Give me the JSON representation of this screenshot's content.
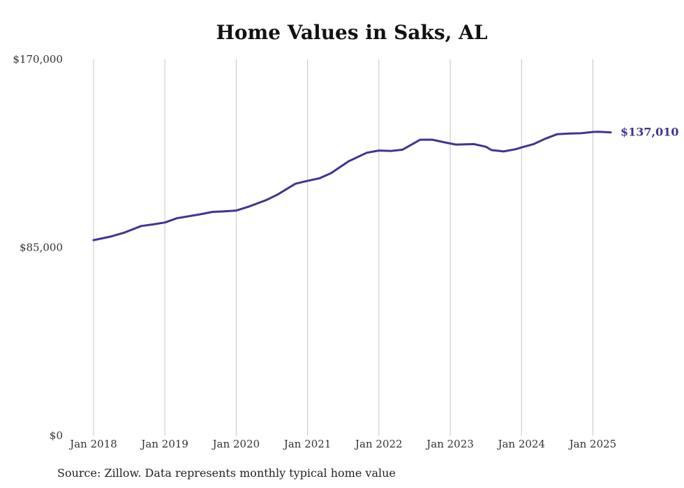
{
  "chart_data": {
    "type": "line",
    "title": "Home Values in Saks, AL",
    "xlabel": "",
    "ylabel": "",
    "ylim": [
      0,
      170000
    ],
    "y_ticks": [
      {
        "value": 0,
        "label": "$0"
      },
      {
        "value": 85000,
        "label": "$85,000"
      },
      {
        "value": 170000,
        "label": "$170,000"
      }
    ],
    "x_ticks": [
      {
        "value": 2018,
        "label": "Jan 2018"
      },
      {
        "value": 2019,
        "label": "Jan 2019"
      },
      {
        "value": 2020,
        "label": "Jan 2020"
      },
      {
        "value": 2021,
        "label": "Jan 2021"
      },
      {
        "value": 2022,
        "label": "Jan 2022"
      },
      {
        "value": 2023,
        "label": "Jan 2023"
      },
      {
        "value": 2024,
        "label": "Jan 2024"
      },
      {
        "value": 2025,
        "label": "Jan 2025"
      }
    ],
    "xlim": [
      2018,
      2025.25
    ],
    "grid": "vertical",
    "line_color": "#3f3591",
    "series": [
      {
        "points": [
          [
            2018.0,
            88300
          ],
          [
            2018.25,
            90000
          ],
          [
            2018.42,
            91600
          ],
          [
            2018.67,
            94700
          ],
          [
            2018.83,
            95400
          ],
          [
            2019.0,
            96300
          ],
          [
            2019.17,
            98200
          ],
          [
            2019.5,
            100000
          ],
          [
            2019.67,
            101100
          ],
          [
            2019.83,
            101300
          ],
          [
            2020.0,
            101700
          ],
          [
            2020.17,
            103400
          ],
          [
            2020.42,
            106400
          ],
          [
            2020.58,
            108900
          ],
          [
            2020.83,
            113800
          ],
          [
            2021.0,
            115100
          ],
          [
            2021.17,
            116300
          ],
          [
            2021.33,
            118600
          ],
          [
            2021.58,
            124000
          ],
          [
            2021.83,
            127800
          ],
          [
            2022.0,
            128800
          ],
          [
            2022.17,
            128600
          ],
          [
            2022.33,
            129200
          ],
          [
            2022.58,
            133700
          ],
          [
            2022.75,
            133700
          ],
          [
            2022.92,
            132500
          ],
          [
            2023.08,
            131500
          ],
          [
            2023.33,
            131700
          ],
          [
            2023.5,
            130500
          ],
          [
            2023.58,
            129000
          ],
          [
            2023.75,
            128400
          ],
          [
            2023.92,
            129400
          ],
          [
            2024.0,
            130200
          ],
          [
            2024.17,
            131700
          ],
          [
            2024.33,
            134100
          ],
          [
            2024.5,
            136200
          ],
          [
            2024.67,
            136500
          ],
          [
            2024.83,
            136600
          ],
          [
            2025.0,
            137200
          ],
          [
            2025.08,
            137300
          ],
          [
            2025.25,
            137010
          ]
        ]
      }
    ],
    "end_label": "$137,010"
  },
  "source_note": "Source: Zillow. Data represents monthly typical home value"
}
